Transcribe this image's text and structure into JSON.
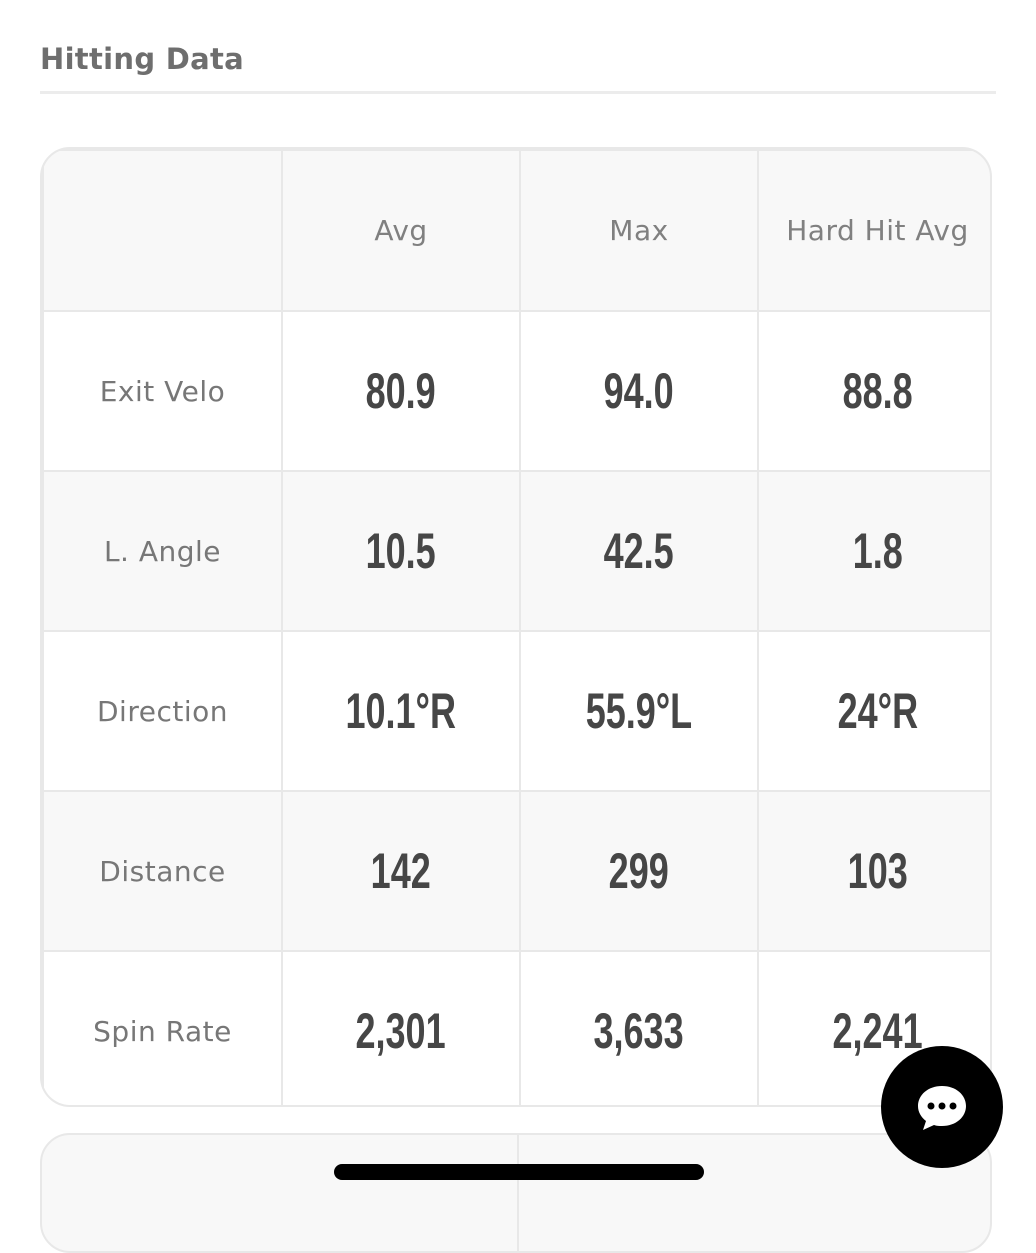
{
  "header": {
    "title": "Hitting Data"
  },
  "table": {
    "columns": [
      "Avg",
      "Max",
      "Hard Hit Avg"
    ],
    "rows": [
      {
        "label": "Exit Velo",
        "values": [
          "80.9",
          "94.0",
          "88.8"
        ]
      },
      {
        "label": "L. Angle",
        "values": [
          "10.5",
          "42.5",
          "1.8"
        ]
      },
      {
        "label": "Direction",
        "values": [
          "10.1°R",
          "55.9°L",
          "24°R"
        ]
      },
      {
        "label": "Distance",
        "values": [
          "142",
          "299",
          "103"
        ]
      },
      {
        "label": "Spin Rate",
        "values": [
          "2,301",
          "3,633",
          "2,241"
        ]
      }
    ]
  }
}
